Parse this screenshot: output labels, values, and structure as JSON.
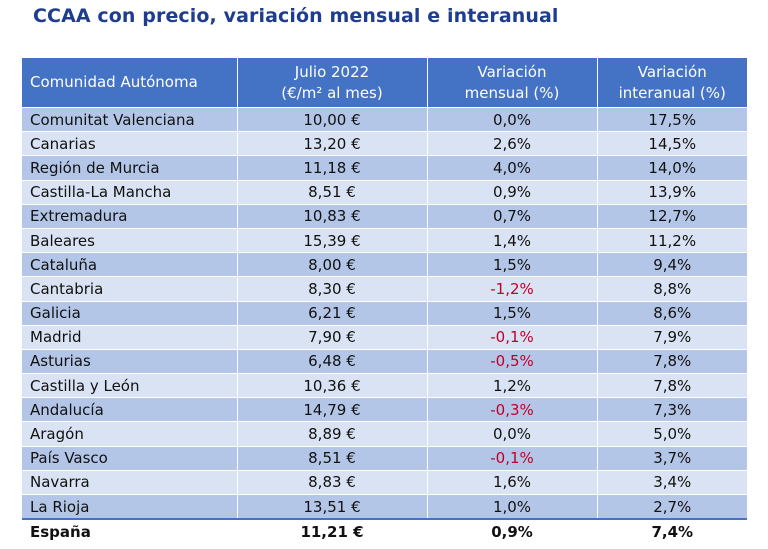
{
  "title": "CCAA con precio, variación mensual e interanual",
  "headers": {
    "region": "Comunidad Autónoma",
    "price_line1": "Julio 2022",
    "price_line2": "(€/m² al mes)",
    "monthly_line1": "Variación",
    "monthly_line2": "mensual (%)",
    "annual_line1": "Variación",
    "annual_line2": "interanual (%)"
  },
  "rows": [
    {
      "region": "Comunitat Valenciana",
      "price": "10,00 €",
      "monthly": "0,0%",
      "annual": "17,5%"
    },
    {
      "region": "Canarias",
      "price": "13,20 €",
      "monthly": "2,6%",
      "annual": "14,5%"
    },
    {
      "region": "Región de Murcia",
      "price": "11,18 €",
      "monthly": "4,0%",
      "annual": "14,0%"
    },
    {
      "region": "Castilla-La Mancha",
      "price": "8,51 €",
      "monthly": "0,9%",
      "annual": "13,9%"
    },
    {
      "region": "Extremadura",
      "price": "10,83 €",
      "monthly": "0,7%",
      "annual": "12,7%"
    },
    {
      "region": "Baleares",
      "price": "15,39 €",
      "monthly": "1,4%",
      "annual": "11,2%"
    },
    {
      "region": "Cataluña",
      "price": "8,00 €",
      "monthly": "1,5%",
      "annual": "9,4%"
    },
    {
      "region": "Cantabria",
      "price": "8,30 €",
      "monthly": "-1,2%",
      "annual": "8,8%"
    },
    {
      "region": "Galicia",
      "price": "6,21 €",
      "monthly": "1,5%",
      "annual": "8,6%"
    },
    {
      "region": "Madrid",
      "price": "7,90 €",
      "monthly": "-0,1%",
      "annual": "7,9%"
    },
    {
      "region": "Asturias",
      "price": "6,48 €",
      "monthly": "-0,5%",
      "annual": "7,8%"
    },
    {
      "region": "Castilla y León",
      "price": "10,36 €",
      "monthly": "1,2%",
      "annual": "7,8%"
    },
    {
      "region": "Andalucía",
      "price": "14,79 €",
      "monthly": "-0,3%",
      "annual": "7,3%"
    },
    {
      "region": "Aragón",
      "price": "8,89 €",
      "monthly": "0,0%",
      "annual": "5,0%"
    },
    {
      "region": "País Vasco",
      "price": "8,51 €",
      "monthly": "-0,1%",
      "annual": "3,7%"
    },
    {
      "region": "Navarra",
      "price": "8,83 €",
      "monthly": "1,6%",
      "annual": "3,4%"
    },
    {
      "region": "La Rioja",
      "price": "13,51 €",
      "monthly": "1,0%",
      "annual": "2,7%"
    }
  ],
  "total": {
    "region": "España",
    "price": "11,21 €",
    "monthly": "0,9%",
    "annual": "7,4%"
  },
  "colors": {
    "header": "#4472c4",
    "row_dark": "#b4c6e7",
    "row_light": "#dae3f3",
    "negative": "#c0002a",
    "title": "#1f3d8f"
  }
}
